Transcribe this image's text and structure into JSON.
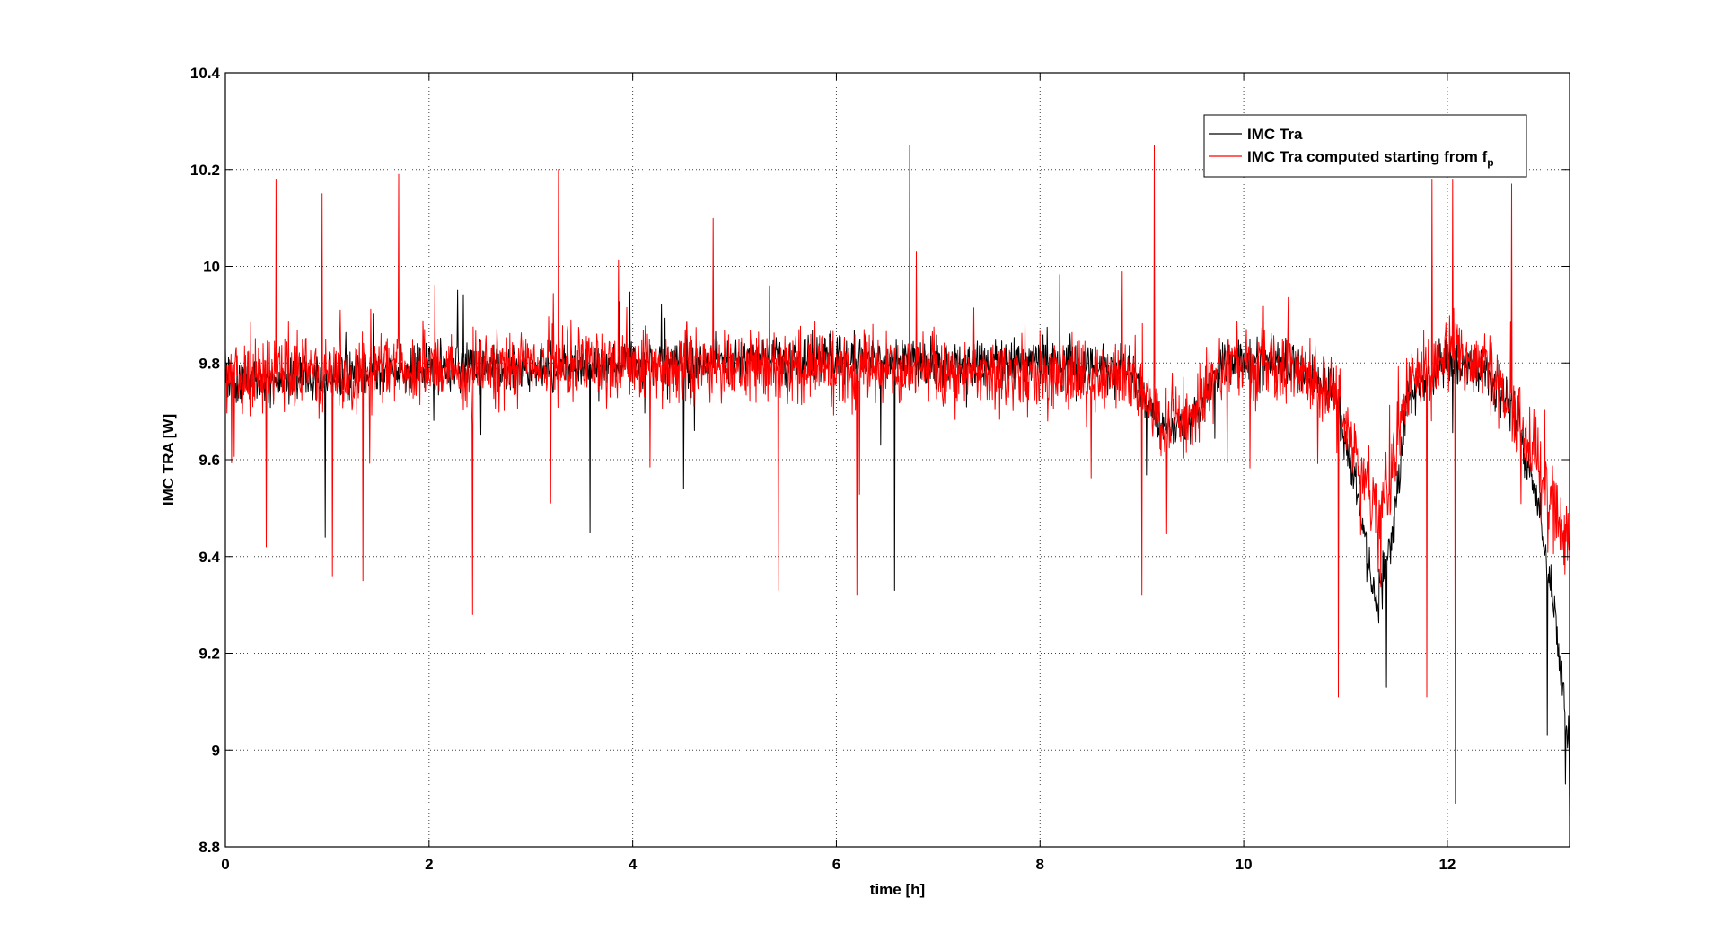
{
  "chart_data": {
    "type": "line",
    "title": "",
    "xlabel": "time [h]",
    "ylabel": "IMC TRA [W]",
    "xlim": [
      0,
      13.2
    ],
    "ylim": [
      8.8,
      10.4
    ],
    "xticks": [
      0,
      2,
      4,
      6,
      8,
      10,
      12
    ],
    "yticks": [
      8.8,
      9,
      9.2,
      9.4,
      9.6,
      9.8,
      10,
      10.2,
      10.4
    ],
    "xtick_labels": [
      "0",
      "2",
      "4",
      "6",
      "8",
      "10",
      "12"
    ],
    "ytick_labels": [
      "8.8",
      "9",
      "9.2",
      "9.4",
      "9.6",
      "9.8",
      "10",
      "10.2",
      "10.4"
    ],
    "grid": true,
    "legend_position": "top-right",
    "series": [
      {
        "name": "IMC Tra",
        "color": "#000000",
        "noise": 0.07,
        "baseline": [
          [
            0,
            9.76
          ],
          [
            1,
            9.77
          ],
          [
            2,
            9.79
          ],
          [
            3,
            9.79
          ],
          [
            4,
            9.8
          ],
          [
            5,
            9.8
          ],
          [
            6,
            9.81
          ],
          [
            7,
            9.8
          ],
          [
            8,
            9.8
          ],
          [
            8.9,
            9.79
          ],
          [
            9.2,
            9.66
          ],
          [
            9.5,
            9.68
          ],
          [
            9.8,
            9.8
          ],
          [
            10.5,
            9.8
          ],
          [
            10.9,
            9.74
          ],
          [
            11.1,
            9.55
          ],
          [
            11.3,
            9.3
          ],
          [
            11.45,
            9.42
          ],
          [
            11.6,
            9.72
          ],
          [
            12,
            9.8
          ],
          [
            12.4,
            9.78
          ],
          [
            12.7,
            9.68
          ],
          [
            12.9,
            9.5
          ],
          [
            13.05,
            9.3
          ],
          [
            13.2,
            9.0
          ]
        ],
        "spikes": [
          [
            0.98,
            9.44
          ],
          [
            3.58,
            9.45
          ],
          [
            4.5,
            9.54
          ],
          [
            6.57,
            9.33
          ],
          [
            11.4,
            9.13
          ],
          [
            13.16,
            8.93
          ],
          [
            13.2,
            8.86
          ],
          [
            12.98,
            9.03
          ]
        ]
      },
      {
        "name": "IMC Tra computed starting from f",
        "name_subscript": "p",
        "color": "#ff0000",
        "noise": 0.11,
        "baseline": [
          [
            0,
            9.77
          ],
          [
            1,
            9.77
          ],
          [
            2,
            9.79
          ],
          [
            3,
            9.79
          ],
          [
            4,
            9.8
          ],
          [
            5,
            9.79
          ],
          [
            6,
            9.79
          ],
          [
            7,
            9.78
          ],
          [
            8,
            9.78
          ],
          [
            8.9,
            9.77
          ],
          [
            9.2,
            9.68
          ],
          [
            9.5,
            9.7
          ],
          [
            9.8,
            9.79
          ],
          [
            10.5,
            9.8
          ],
          [
            10.9,
            9.74
          ],
          [
            11.1,
            9.6
          ],
          [
            11.3,
            9.5
          ],
          [
            11.45,
            9.55
          ],
          [
            11.6,
            9.76
          ],
          [
            12,
            9.82
          ],
          [
            12.4,
            9.8
          ],
          [
            12.7,
            9.68
          ],
          [
            12.9,
            9.58
          ],
          [
            13.05,
            9.5
          ],
          [
            13.2,
            9.4
          ]
        ],
        "spikes": [
          [
            0.5,
            10.18
          ],
          [
            0.95,
            10.15
          ],
          [
            1.7,
            10.19
          ],
          [
            3.27,
            10.2
          ],
          [
            6.72,
            10.25
          ],
          [
            9.12,
            10.25
          ],
          [
            11.85,
            10.18
          ],
          [
            12.05,
            10.18
          ],
          [
            12.63,
            10.17
          ],
          [
            1.05,
            9.36
          ],
          [
            1.35,
            9.35
          ],
          [
            2.43,
            9.28
          ],
          [
            5.43,
            9.33
          ],
          [
            6.2,
            9.32
          ],
          [
            9.0,
            9.32
          ],
          [
            10.93,
            9.11
          ],
          [
            11.8,
            9.11
          ],
          [
            12.08,
            8.89
          ],
          [
            0.4,
            9.42
          ]
        ]
      }
    ]
  }
}
